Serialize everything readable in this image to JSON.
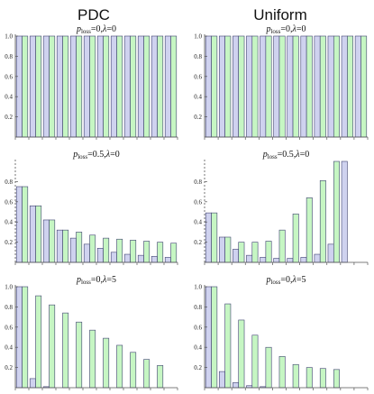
{
  "column_titles": [
    "PDC",
    "Uniform"
  ],
  "chart_data": [
    {
      "type": "bar",
      "column": "PDC",
      "title_parts": [
        "p",
        "loss",
        "=0,",
        "λ",
        "=0"
      ],
      "ylim": [
        0,
        1.0
      ],
      "yticks": [
        "0.2",
        "0.4",
        "0.6",
        "0.8",
        "1.0"
      ],
      "n_categories": 12,
      "series": [
        {
          "values": [
            1.0,
            1.0,
            1.0,
            1.0,
            1.0,
            1.0,
            1.0,
            1.0,
            1.0,
            1.0,
            1.0,
            1.0
          ],
          "color": "#cfd2ef"
        },
        {
          "values": [
            1.0,
            1.0,
            1.0,
            1.0,
            1.0,
            1.0,
            1.0,
            1.0,
            1.0,
            1.0,
            1.0,
            1.0
          ],
          "color": "#c6f6c3"
        }
      ]
    },
    {
      "type": "bar",
      "column": "Uniform",
      "title_parts": [
        "p",
        "loss",
        "=0,",
        "λ",
        "=0"
      ],
      "ylim": [
        0,
        1.0
      ],
      "yticks": [
        "0.2",
        "0.4",
        "0.6",
        "0.8",
        "1.0"
      ],
      "n_categories": 12,
      "series": [
        {
          "values": [
            1.0,
            1.0,
            1.0,
            1.0,
            1.0,
            1.0,
            1.0,
            1.0,
            1.0,
            1.0,
            1.0,
            1.0
          ],
          "color": "#cfd2ef"
        },
        {
          "values": [
            1.0,
            1.0,
            1.0,
            1.0,
            1.0,
            1.0,
            1.0,
            1.0,
            1.0,
            1.0,
            1.0,
            1.0
          ],
          "color": "#c6f6c3"
        }
      ]
    },
    {
      "type": "bar",
      "column": "PDC",
      "title_parts": [
        "p",
        "loss",
        "=0.5,",
        "λ",
        "=0"
      ],
      "ylim": [
        0,
        1.0
      ],
      "yticks": [
        "0.2",
        "0.4",
        "0.6",
        "0.8"
      ],
      "n_categories": 12,
      "series": [
        {
          "values": [
            0.75,
            0.56,
            0.42,
            0.32,
            0.24,
            0.18,
            0.14,
            0.1,
            0.08,
            0.07,
            0.06,
            0.05
          ],
          "color": "#cfd2ef"
        },
        {
          "values": [
            0.75,
            0.56,
            0.42,
            0.32,
            0.3,
            0.27,
            0.24,
            0.23,
            0.22,
            0.21,
            0.2,
            0.19
          ],
          "color": "#c6f6c3"
        }
      ]
    },
    {
      "type": "bar",
      "column": "Uniform",
      "title_parts": [
        "p",
        "loss",
        "=0.5,",
        "λ",
        "=0"
      ],
      "ylim": [
        0,
        1.0
      ],
      "yticks": [
        "0.2",
        "0.4",
        "0.6",
        "0.8"
      ],
      "n_categories": 12,
      "series": [
        {
          "values": [
            0.49,
            0.25,
            0.13,
            0.07,
            0.05,
            0.04,
            0.04,
            0.05,
            0.08,
            0.18,
            1.0,
            0.0
          ],
          "color": "#cfd2ef"
        },
        {
          "values": [
            0.49,
            0.25,
            0.2,
            0.2,
            0.21,
            0.32,
            0.48,
            0.64,
            0.81,
            1.0,
            0.0,
            0.0
          ],
          "color": "#c6f6c3"
        }
      ]
    },
    {
      "type": "bar",
      "column": "PDC",
      "title_parts": [
        "p",
        "loss",
        "=0,",
        "λ",
        "=5"
      ],
      "ylim": [
        0,
        1.0
      ],
      "yticks": [
        "0.2",
        "0.4",
        "0.6",
        "0.8",
        "1.0"
      ],
      "n_categories": 12,
      "series": [
        {
          "values": [
            1.0,
            0.09,
            0.01,
            0.0,
            0.0,
            0.0,
            0.0,
            0.0,
            0.0,
            0.0,
            0.0,
            0.0
          ],
          "color": "#cfd2ef"
        },
        {
          "values": [
            1.0,
            0.91,
            0.82,
            0.74,
            0.65,
            0.57,
            0.49,
            0.42,
            0.35,
            0.28,
            0.22,
            0.0
          ],
          "color": "#c6f6c3"
        }
      ]
    },
    {
      "type": "bar",
      "column": "Uniform",
      "title_parts": [
        "p",
        "loss",
        "=0,",
        "λ",
        "=5"
      ],
      "ylim": [
        0,
        1.0
      ],
      "yticks": [
        "0.2",
        "0.4",
        "0.6",
        "0.8",
        "1.0"
      ],
      "n_categories": 12,
      "series": [
        {
          "values": [
            1.0,
            0.16,
            0.05,
            0.02,
            0.01,
            0.0,
            0.0,
            0.0,
            0.0,
            0.0,
            0.0,
            0.0
          ],
          "color": "#cfd2ef"
        },
        {
          "values": [
            1.0,
            0.83,
            0.67,
            0.52,
            0.4,
            0.31,
            0.23,
            0.2,
            0.19,
            0.18,
            0.0,
            0.0
          ],
          "color": "#c6f6c3"
        }
      ]
    }
  ]
}
